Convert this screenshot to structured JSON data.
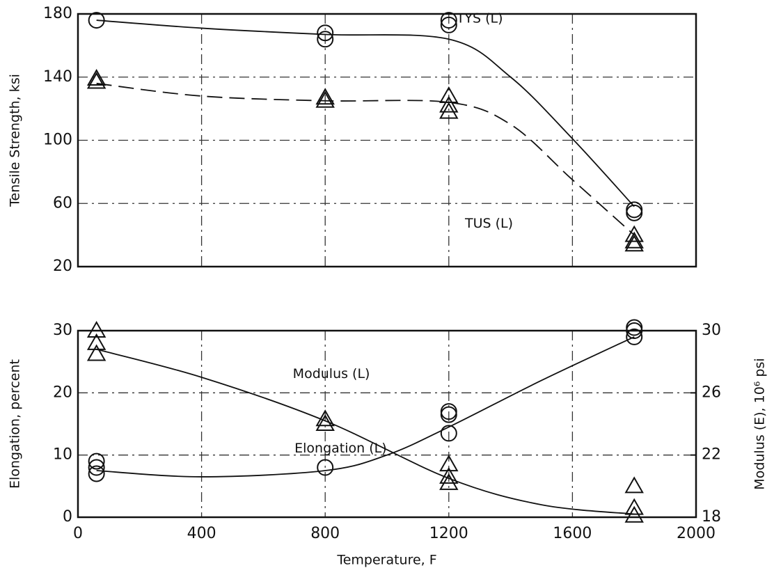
{
  "chart_data": [
    {
      "type": "line",
      "ylabel": "Tensile Strength, ksi",
      "xlim": [
        0,
        2000
      ],
      "xticks": [
        0,
        400,
        800,
        1200,
        1600,
        2000
      ],
      "ylim": [
        20,
        180
      ],
      "yticks": [
        20,
        60,
        100,
        140,
        180
      ],
      "grid": true,
      "series": [
        {
          "name": "TUS (L)",
          "color": "#111111",
          "linestyle": "solid",
          "marker": "circle",
          "x": [
            60,
            400,
            800,
            1200,
            1400,
            1600,
            1800
          ],
          "values": [
            176,
            171,
            167,
            164,
            140,
            101,
            58
          ],
          "points": {
            "x": [
              60,
              800,
              800,
              1200,
              1200,
              1800,
              1800
            ],
            "values": [
              176,
              168,
              164,
              173,
              176,
              56,
              54
            ]
          }
        },
        {
          "name": "TYS (L)",
          "color": "#111111",
          "linestyle": "dashed",
          "marker": "triangle",
          "x": [
            60,
            400,
            800,
            1200,
            1400,
            1600,
            1800
          ],
          "values": [
            136,
            128,
            125,
            124,
            110,
            75,
            40
          ],
          "points": {
            "x": [
              60,
              60,
              800,
              800,
              1200,
              1200,
              1200,
              1800,
              1800,
              1800
            ],
            "values": [
              139,
              137,
              127,
              125,
              128,
              122,
              118,
              40,
              36,
              34
            ]
          }
        }
      ]
    },
    {
      "type": "line",
      "xlabel": "Temperature, F",
      "ylabel": "Elongation, percent",
      "y2label": "Modulus (E), 10⁶ psi",
      "xlim": [
        0,
        2000
      ],
      "xticks": [
        0,
        400,
        800,
        1200,
        1600,
        2000
      ],
      "ylim": [
        0,
        30
      ],
      "yticks": [
        0,
        10,
        20,
        30
      ],
      "y2lim": [
        18,
        30
      ],
      "y2ticks": [
        18,
        22,
        26,
        30
      ],
      "grid": true,
      "series": [
        {
          "name": "Modulus (L)",
          "color": "#111111",
          "linestyle": "solid",
          "marker": "triangle",
          "axis": "y2",
          "x": [
            60,
            400,
            800,
            1200,
            1500,
            1800
          ],
          "values": [
            28.8,
            27,
            24.2,
            20.5,
            18.8,
            18.2
          ],
          "points": {
            "x": [
              60,
              60,
              60,
              800,
              800,
              1200,
              1200,
              1200,
              1800,
              1800,
              1800
            ],
            "values": [
              30,
              29.2,
              28.5,
              24.3,
              24,
              21.4,
              20.6,
              20.2,
              20,
              18.6,
              18.1
            ]
          }
        },
        {
          "name": "Elongation (L)",
          "color": "#111111",
          "linestyle": "solid",
          "marker": "circle",
          "x": [
            60,
            400,
            800,
            1000,
            1200,
            1500,
            1800
          ],
          "values": [
            7.5,
            6.5,
            7.5,
            10,
            14.5,
            22,
            29
          ],
          "points": {
            "x": [
              60,
              60,
              60,
              800,
              1200,
              1200,
              1200,
              1800,
              1800,
              1800
            ],
            "values": [
              9,
              8,
              7,
              8,
              17,
              16.5,
              13.5,
              30.5,
              30,
              29
            ]
          }
        }
      ]
    }
  ]
}
